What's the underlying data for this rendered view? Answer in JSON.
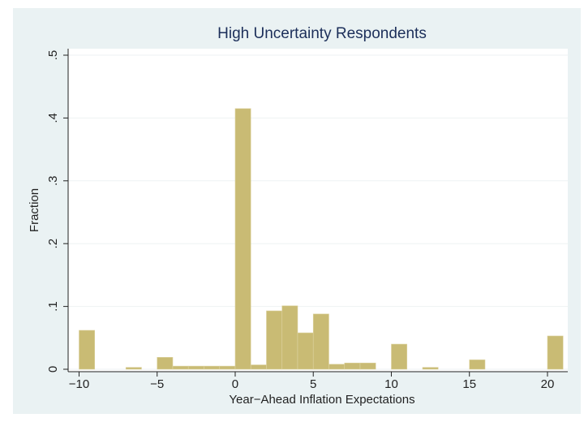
{
  "chart_data": {
    "type": "histogram",
    "title": "High Uncertainty Respondents",
    "x_label": "Year−Ahead Inflation Expectations",
    "y_label": "Fraction",
    "bins": [
      -10,
      -9,
      -8,
      -7,
      -6,
      -5,
      -4,
      -3,
      -2,
      -1,
      0,
      1,
      2,
      3,
      4,
      5,
      6,
      7,
      8,
      9,
      10,
      11,
      12,
      13,
      14,
      15,
      16,
      17,
      18,
      19,
      20,
      21
    ],
    "values": [
      0.062,
      0,
      0,
      0.003,
      0,
      0.019,
      0.005,
      0.005,
      0.005,
      0.005,
      0.415,
      0.007,
      0.093,
      0.101,
      0.058,
      0.088,
      0.008,
      0.01,
      0.01,
      0,
      0.04,
      0,
      0.003,
      0,
      0,
      0.015,
      0,
      0,
      0,
      0,
      0.053
    ],
    "color": "#c9bb74",
    "xlim": [
      -10.7,
      21.3
    ],
    "ylim": [
      0,
      0.5
    ],
    "xticks": [
      {
        "value": -10,
        "label": "−10"
      },
      {
        "value": -5,
        "label": "−5"
      },
      0,
      5,
      10,
      15,
      20
    ],
    "yticks": [
      0,
      {
        "value": 0.1,
        "label": ".1"
      },
      {
        "value": 0.2,
        "label": ".2"
      },
      {
        "value": 0.3,
        "label": ".3"
      },
      {
        "value": 0.4,
        "label": ".4"
      },
      {
        "value": 0.5,
        "label": ".5"
      }
    ],
    "grid": true
  }
}
